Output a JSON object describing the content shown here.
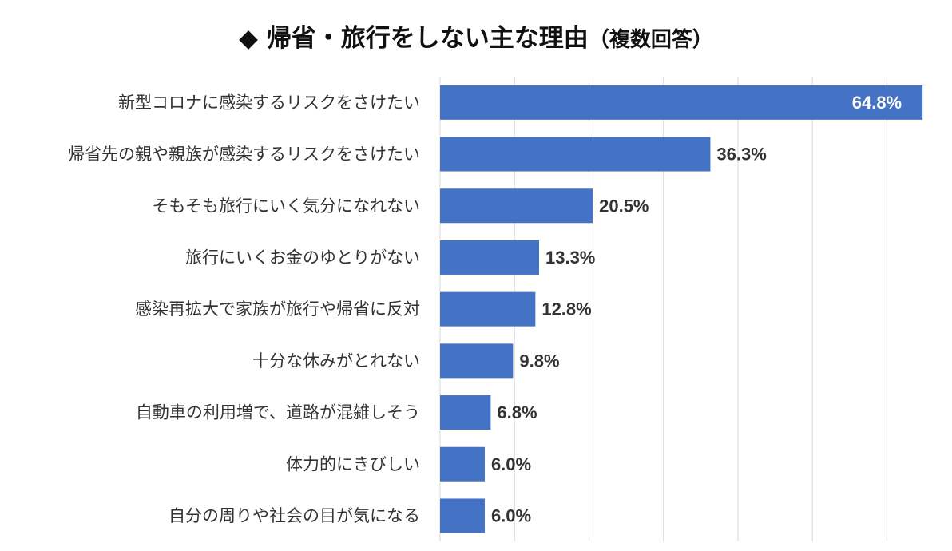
{
  "chart_data": {
    "type": "bar",
    "orientation": "horizontal",
    "title_marker": "◆",
    "title": "帰省・旅行をしない主な理由",
    "subtitle": "（複数回答）",
    "categories": [
      "新型コロナに感染するリスクをさけたい",
      "帰省先の親や親族が感染するリスクをさけたい",
      "そもそも旅行にいく気分になれない",
      "旅行にいくお金のゆとりがない",
      "感染再拡大で家族が旅行や帰省に反対",
      "十分な休みがとれない",
      "自動車の利用増で、道路が混雑しそう",
      "体力的にきびしい",
      "自分の周りや社会の目が気になる"
    ],
    "values": [
      64.8,
      36.3,
      20.5,
      13.3,
      12.8,
      9.8,
      6.8,
      6.0,
      6.0
    ],
    "value_labels": [
      "64.8%",
      "36.3%",
      "20.5%",
      "13.3%",
      "12.8%",
      "9.8%",
      "6.8%",
      "6.0%",
      "6.0%"
    ],
    "xlim": [
      0,
      65
    ],
    "grid": true,
    "legend": "none",
    "bar_color": "#4472C4",
    "grid_color": "#D9D9D9",
    "inside_label_color": "#FFFFFF",
    "outside_label_color": "#333333"
  }
}
